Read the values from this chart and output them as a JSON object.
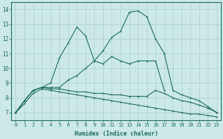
{
  "xlabel": "Humidex (Indice chaleur)",
  "bg_color": "#cce8e8",
  "grid_color": "#aacfcf",
  "line_color": "#1a6b5a",
  "xlim": [
    -0.5,
    23.5
  ],
  "ylim": [
    6.5,
    14.5
  ],
  "xticks": [
    0,
    1,
    2,
    3,
    4,
    5,
    6,
    7,
    8,
    9,
    10,
    11,
    12,
    13,
    14,
    15,
    16,
    17,
    18,
    19,
    20,
    21,
    22,
    23
  ],
  "yticks": [
    7,
    8,
    9,
    10,
    11,
    12,
    13,
    14
  ],
  "line_spike_x": [
    0,
    1,
    2,
    3,
    4,
    5,
    6,
    7,
    8,
    9,
    10,
    11,
    12,
    13,
    14,
    15,
    16,
    17
  ],
  "line_spike_y": [
    7.0,
    7.8,
    8.5,
    8.7,
    9.0,
    10.7,
    11.7,
    12.8,
    12.2,
    10.5,
    10.3,
    10.8,
    10.5,
    10.3,
    10.5,
    10.5,
    10.5,
    8.5
  ],
  "line_main_x": [
    0,
    1,
    2,
    3,
    4,
    5,
    6,
    7,
    8,
    9,
    10,
    11,
    12,
    13,
    14,
    15,
    16,
    17,
    18,
    19,
    20,
    21,
    22,
    23
  ],
  "line_main_y": [
    7.0,
    7.8,
    8.5,
    8.7,
    8.7,
    8.7,
    9.2,
    9.5,
    10.0,
    10.5,
    11.2,
    12.1,
    12.5,
    13.8,
    13.9,
    13.5,
    12.0,
    11.0,
    8.5,
    8.2,
    8.0,
    7.8,
    7.4,
    7.0
  ],
  "line_flat1_x": [
    0,
    1,
    2,
    3,
    4,
    5,
    6,
    7,
    8,
    9,
    10,
    11,
    12,
    13,
    14,
    15,
    16,
    17,
    18,
    19,
    20,
    21,
    22,
    23
  ],
  "line_flat1_y": [
    7.0,
    7.8,
    8.5,
    8.7,
    8.6,
    8.6,
    8.5,
    8.4,
    8.4,
    8.3,
    8.3,
    8.2,
    8.2,
    8.1,
    8.1,
    8.1,
    8.5,
    8.3,
    8.0,
    7.8,
    7.7,
    7.5,
    7.3,
    7.0
  ],
  "line_flat2_x": [
    0,
    1,
    2,
    3,
    4,
    5,
    6,
    7,
    8,
    9,
    10,
    11,
    12,
    13,
    14,
    15,
    16,
    17,
    18,
    19,
    20,
    21,
    22,
    23
  ],
  "line_flat2_y": [
    7.0,
    7.6,
    8.3,
    8.6,
    8.5,
    8.4,
    8.3,
    8.2,
    8.1,
    8.0,
    7.9,
    7.8,
    7.7,
    7.6,
    7.5,
    7.4,
    7.3,
    7.2,
    7.1,
    7.0,
    6.9,
    6.9,
    6.8,
    6.7
  ]
}
